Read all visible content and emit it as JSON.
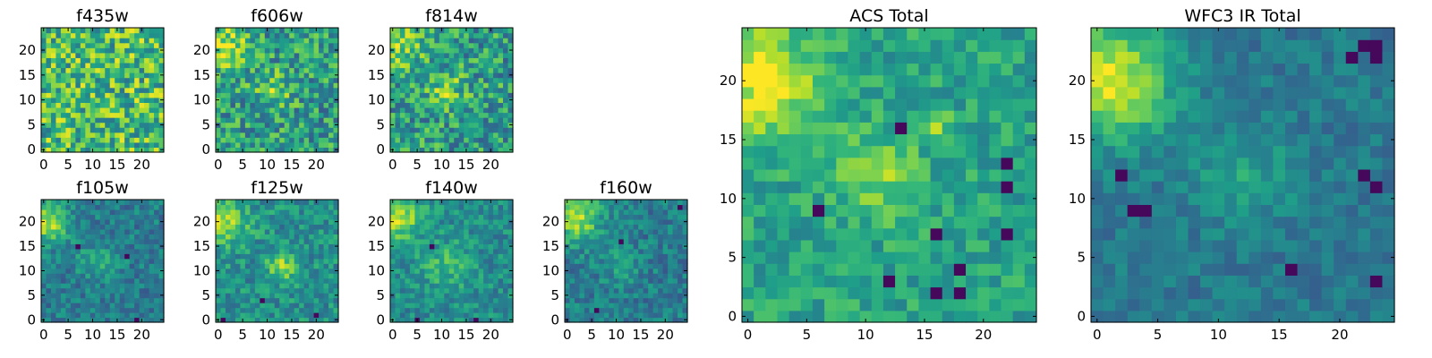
{
  "chart_data": {
    "type": "heatmap",
    "colormap": "viridis",
    "grid_size": 25,
    "panels": [
      {
        "id": "f435w",
        "title": "f435w",
        "xticks": [
          "0",
          "5",
          "10",
          "15",
          "20"
        ],
        "yticks": [
          "0",
          "5",
          "10",
          "15",
          "20"
        ],
        "xlim": [
          0,
          24
        ],
        "ylim": [
          0,
          24
        ],
        "features": {
          "base": 0.68,
          "noise": 0.3,
          "blobs": [],
          "dark_spots": []
        }
      },
      {
        "id": "f606w",
        "title": "f606w",
        "xticks": [
          "0",
          "5",
          "10",
          "15",
          "20"
        ],
        "yticks": [
          "0",
          "5",
          "10",
          "15",
          "20"
        ],
        "xlim": [
          0,
          24
        ],
        "ylim": [
          0,
          24
        ],
        "features": {
          "base": 0.55,
          "noise": 0.26,
          "blobs": [
            {
              "x": 1,
              "y": 21,
              "r": 3.5,
              "amp": 0.35
            },
            {
              "x": 11,
              "y": 12,
              "r": 2.5,
              "amp": 0.25
            }
          ],
          "dark_spots": []
        }
      },
      {
        "id": "f814w",
        "title": "f814w",
        "xticks": [
          "0",
          "5",
          "10",
          "15",
          "20"
        ],
        "yticks": [
          "0",
          "5",
          "10",
          "15",
          "20"
        ],
        "xlim": [
          0,
          24
        ],
        "ylim": [
          0,
          24
        ],
        "features": {
          "base": 0.55,
          "noise": 0.26,
          "blobs": [
            {
              "x": 1,
              "y": 21,
              "r": 3.5,
              "amp": 0.3
            },
            {
              "x": 11,
              "y": 12,
              "r": 2.5,
              "amp": 0.25
            }
          ],
          "dark_spots": []
        }
      },
      {
        "id": "f105w",
        "title": "f105w",
        "xticks": [
          "0",
          "5",
          "10",
          "15",
          "20"
        ],
        "yticks": [
          "0",
          "5",
          "10",
          "15",
          "20"
        ],
        "xlim": [
          0,
          24
        ],
        "ylim": [
          0,
          24
        ],
        "features": {
          "base": 0.42,
          "noise": 0.15,
          "blobs": [
            {
              "x": 1,
              "y": 20,
              "r": 3.0,
              "amp": 0.45
            },
            {
              "x": 11,
              "y": 12,
              "r": 3.0,
              "amp": 0.15
            }
          ],
          "dark_spots": [
            {
              "x": 19,
              "y": 0
            },
            {
              "x": 17,
              "y": 13
            },
            {
              "x": 7,
              "y": 15
            }
          ]
        }
      },
      {
        "id": "f125w",
        "title": "f125w",
        "xticks": [
          "0",
          "5",
          "10",
          "15",
          "20"
        ],
        "yticks": [
          "0",
          "5",
          "10",
          "15",
          "20"
        ],
        "xlim": [
          0,
          24
        ],
        "ylim": [
          0,
          24
        ],
        "features": {
          "base": 0.5,
          "noise": 0.17,
          "blobs": [
            {
              "x": 1,
              "y": 20,
              "r": 3.5,
              "amp": 0.35
            },
            {
              "x": 13,
              "y": 11,
              "r": 2.0,
              "amp": 0.35
            }
          ],
          "dark_spots": [
            {
              "x": 1,
              "y": 0
            },
            {
              "x": 9,
              "y": 4
            },
            {
              "x": 20,
              "y": 1
            }
          ]
        }
      },
      {
        "id": "f140w",
        "title": "f140w",
        "xticks": [
          "0",
          "5",
          "10",
          "15",
          "20"
        ],
        "yticks": [
          "0",
          "5",
          "10",
          "15",
          "20"
        ],
        "xlim": [
          0,
          24
        ],
        "ylim": [
          0,
          24
        ],
        "features": {
          "base": 0.48,
          "noise": 0.15,
          "blobs": [
            {
              "x": 1,
              "y": 21,
              "r": 3.5,
              "amp": 0.4
            },
            {
              "x": 11,
              "y": 11,
              "r": 3.5,
              "amp": 0.2
            }
          ],
          "dark_spots": [
            {
              "x": 5,
              "y": 0
            },
            {
              "x": 17,
              "y": 0
            },
            {
              "x": 8,
              "y": 15
            }
          ]
        }
      },
      {
        "id": "f160w",
        "title": "f160w",
        "xticks": [
          "0",
          "5",
          "10",
          "15",
          "20"
        ],
        "yticks": [
          "0",
          "5",
          "10",
          "15",
          "20"
        ],
        "xlim": [
          0,
          24
        ],
        "ylim": [
          0,
          24
        ],
        "features": {
          "base": 0.42,
          "noise": 0.15,
          "blobs": [
            {
              "x": 2,
              "y": 21,
              "r": 3.5,
              "amp": 0.45
            },
            {
              "x": 11,
              "y": 11,
              "r": 3.0,
              "amp": 0.12
            }
          ],
          "dark_spots": [
            {
              "x": 23,
              "y": 23
            },
            {
              "x": 11,
              "y": 16
            },
            {
              "x": 6,
              "y": 2
            }
          ]
        }
      },
      {
        "id": "acs_total",
        "title": "ACS Total",
        "xticks": [
          "0",
          "5",
          "10",
          "15",
          "20"
        ],
        "yticks": [
          "0",
          "5",
          "10",
          "15",
          "20"
        ],
        "xlim": [
          0,
          24
        ],
        "ylim": [
          0,
          24
        ],
        "features": {
          "base": 0.58,
          "noise": 0.14,
          "blobs": [
            {
              "x": 1,
              "y": 20,
              "r": 3.5,
              "amp": 0.38
            },
            {
              "x": 11,
              "y": 12,
              "r": 2.5,
              "amp": 0.25
            },
            {
              "x": 16,
              "y": 16,
              "r": 0.8,
              "amp": 0.35
            }
          ],
          "dark_spots": [
            {
              "x": 13,
              "y": 16
            },
            {
              "x": 6,
              "y": 9
            },
            {
              "x": 16,
              "y": 7
            },
            {
              "x": 22,
              "y": 13
            },
            {
              "x": 22,
              "y": 11
            },
            {
              "x": 18,
              "y": 4
            },
            {
              "x": 22,
              "y": 7
            },
            {
              "x": 18,
              "y": 2
            },
            {
              "x": 16,
              "y": 2
            },
            {
              "x": 12,
              "y": 3
            }
          ]
        }
      },
      {
        "id": "wfc3_ir_total",
        "title": "WFC3 IR Total",
        "xticks": [
          "0",
          "5",
          "10",
          "15",
          "20"
        ],
        "yticks": [
          "0",
          "5",
          "10",
          "15",
          "20"
        ],
        "xlim": [
          0,
          24
        ],
        "ylim": [
          0,
          24
        ],
        "features": {
          "base": 0.4,
          "noise": 0.1,
          "blobs": [
            {
              "x": 1,
              "y": 20,
              "r": 3.5,
              "amp": 0.55
            },
            {
              "x": 12,
              "y": 12,
              "r": 3.0,
              "amp": 0.18
            }
          ],
          "dark_spots": [
            {
              "x": 22,
              "y": 23
            },
            {
              "x": 23,
              "y": 23
            },
            {
              "x": 21,
              "y": 22
            },
            {
              "x": 23,
              "y": 22
            },
            {
              "x": 3,
              "y": 9
            },
            {
              "x": 4,
              "y": 9
            },
            {
              "x": 22,
              "y": 12
            },
            {
              "x": 23,
              "y": 11
            },
            {
              "x": 16,
              "y": 4
            },
            {
              "x": 23,
              "y": 3
            },
            {
              "x": 2,
              "y": 12
            }
          ]
        }
      }
    ]
  }
}
